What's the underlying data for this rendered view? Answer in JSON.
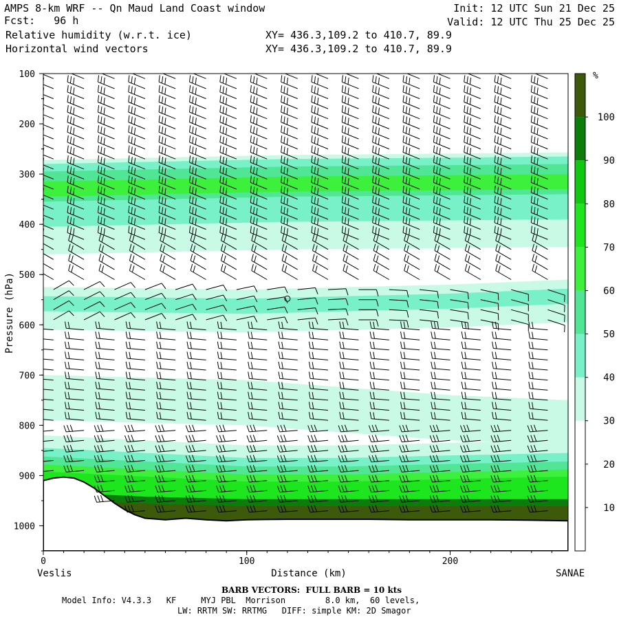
{
  "header": {
    "title": "AMPS 8-km WRF -- Qn Maud Land Coast window",
    "fcst_label": "Fcst:",
    "fcst_value": "96 h",
    "field1": "Relative humidity (w.r.t. ice)",
    "field2": "Horizontal wind vectors",
    "xy1": "XY= 436.3,109.2 to 410.7, 89.9",
    "xy2": "XY= 436.3,109.2 to 410.7, 89.9",
    "init": "Init: 12 UTC Sun 21 Dec 25",
    "valid": "Valid: 12 UTC Thu 25 Dec 25"
  },
  "footer": {
    "barb_note": "BARB VECTORS:  FULL BARB = 10 kts",
    "model_line1": "Model Info: V4.3.3   KF     MYJ PBL  Morrison        8.0 km,  60 levels,",
    "model_line2": "LW: RRTM SW: RRTMG   DIFF: simple KM: 2D Smagor"
  },
  "chart_data": {
    "type": "heatmap",
    "title": "Relative humidity (w.r.t. ice)",
    "xlabel": "Distance (km)",
    "ylabel": "Pressure (hPa)",
    "x_range": [
      0,
      258
    ],
    "y_range": [
      100,
      1050
    ],
    "y_scale": "linear-inverted",
    "x_ticks": [
      0,
      100,
      200
    ],
    "y_ticks": [
      100,
      200,
      300,
      400,
      500,
      600,
      700,
      800,
      900,
      1000
    ],
    "x_start_label": "Veslis",
    "x_end_label": "SANAE",
    "colorbar": {
      "unit": "%",
      "tick_labels": [
        "10",
        "20",
        "30",
        "40",
        "50",
        "60",
        "70",
        "80",
        "90",
        "100"
      ],
      "levels": [
        0,
        10,
        20,
        30,
        40,
        50,
        60,
        70,
        80,
        90,
        100,
        110
      ],
      "colors": [
        "#ffffff",
        "#ffffff",
        "#ffffff",
        "#c8fae6",
        "#78f0c8",
        "#50e696",
        "#3cf03c",
        "#1ee61e",
        "#10c810",
        "#0a7d0a",
        "#3c5a0a"
      ]
    },
    "rh_layers": [
      {
        "name": "upper moist layer edge",
        "x": [
          0,
          60,
          120,
          180,
          258
        ],
        "p": [
          275,
          272,
          272,
          270,
          268
        ],
        "rh": 35
      },
      {
        "name": "upper moist layer core",
        "x": [
          0,
          60,
          120,
          180,
          258
        ],
        "p": [
          330,
          325,
          320,
          318,
          315
        ],
        "rh": 62
      },
      {
        "name": "mid moist band",
        "x": [
          0,
          100,
          150,
          200,
          258
        ],
        "p": [
          555,
          560,
          555,
          550,
          540
        ],
        "rh": 42
      },
      {
        "name": "lower moist band",
        "x": [
          0,
          100,
          200,
          258
        ],
        "p": [
          750,
          760,
          790,
          800
        ],
        "rh": 32
      },
      {
        "name": "boundary layer",
        "x": [
          0,
          50,
          100,
          150,
          200,
          258
        ],
        "p": [
          900,
          910,
          920,
          920,
          915,
          910
        ],
        "rh": 75
      },
      {
        "name": "near surface",
        "x": [
          0,
          50,
          100,
          150,
          200,
          258
        ],
        "p": [
          960,
          970,
          975,
          975,
          975,
          975
        ],
        "rh": 100
      }
    ],
    "terrain": {
      "x": [
        0,
        5,
        10,
        15,
        20,
        25,
        30,
        35,
        40,
        45,
        50,
        60,
        70,
        80,
        90,
        100,
        120,
        140,
        160,
        180,
        200,
        220,
        240,
        258
      ],
      "p": [
        910,
        905,
        903,
        905,
        913,
        925,
        940,
        955,
        968,
        978,
        985,
        988,
        985,
        988,
        990,
        988,
        987,
        987,
        987,
        988,
        988,
        988,
        989,
        990
      ]
    },
    "wind_barbs": {
      "columns_km": [
        5,
        20,
        35,
        50,
        65,
        80,
        95,
        110,
        125,
        140,
        155,
        170,
        185,
        200,
        215,
        230,
        248
      ],
      "pressure_levels": [
        110,
        130,
        150,
        170,
        190,
        210,
        230,
        250,
        270,
        290,
        310,
        330,
        350,
        370,
        390,
        410,
        430,
        450,
        470,
        490,
        510,
        530,
        550,
        570,
        590,
        610,
        630,
        650,
        670,
        690,
        710,
        730,
        750,
        770,
        790,
        810,
        830,
        850,
        870,
        890,
        910,
        930,
        950,
        970
      ],
      "calm_marker": {
        "x": 120,
        "p": 548
      }
    }
  }
}
